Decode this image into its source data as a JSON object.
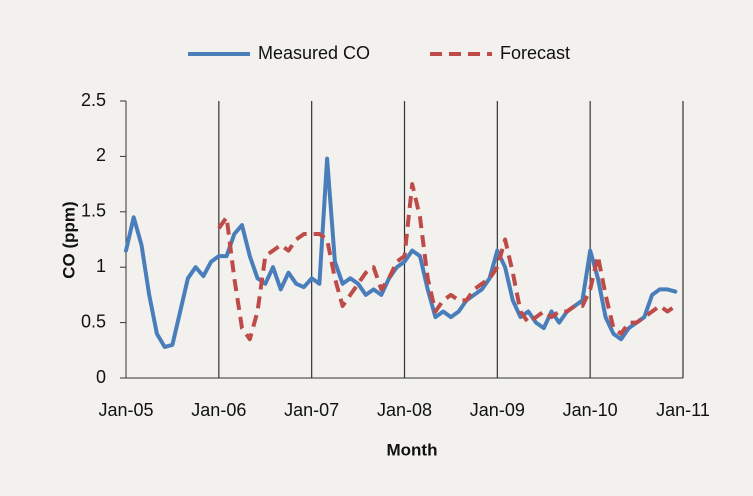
{
  "chart_data": {
    "type": "line",
    "x_label": "Month",
    "y_label": "CO (ppm)",
    "categories": [
      "Jan-05",
      null,
      null,
      null,
      null,
      null,
      null,
      null,
      null,
      null,
      null,
      null,
      "Jan-06",
      null,
      null,
      null,
      null,
      null,
      null,
      null,
      null,
      null,
      null,
      null,
      "Jan-07",
      null,
      null,
      null,
      null,
      null,
      null,
      null,
      null,
      null,
      null,
      null,
      "Jan-08",
      null,
      null,
      null,
      null,
      null,
      null,
      null,
      null,
      null,
      null,
      null,
      "Jan-09",
      null,
      null,
      null,
      null,
      null,
      null,
      null,
      null,
      null,
      null,
      null,
      "Jan-10",
      null,
      null,
      null,
      null,
      null,
      null,
      null,
      null,
      null,
      null,
      null,
      "Jan-11"
    ],
    "series": [
      {
        "name": "Measured CO",
        "color": "#4a7ebb",
        "dash": false,
        "values": [
          1.15,
          1.45,
          1.2,
          0.75,
          0.4,
          0.28,
          0.3,
          0.6,
          0.9,
          1.0,
          0.92,
          1.05,
          1.1,
          1.1,
          1.3,
          1.38,
          1.1,
          0.9,
          0.85,
          1.0,
          0.8,
          0.95,
          0.85,
          0.82,
          0.9,
          0.85,
          1.98,
          1.05,
          0.85,
          0.9,
          0.85,
          0.75,
          0.8,
          0.75,
          0.9,
          1.0,
          1.05,
          1.15,
          1.1,
          0.8,
          0.55,
          0.6,
          0.55,
          0.6,
          0.7,
          0.75,
          0.8,
          0.9,
          1.15,
          1.0,
          0.7,
          0.55,
          0.6,
          0.5,
          0.45,
          0.6,
          0.5,
          0.6,
          0.65,
          0.7,
          1.15,
          0.9,
          0.55,
          0.4,
          0.35,
          0.45,
          0.5,
          0.55,
          0.75,
          0.8,
          0.8,
          0.78,
          null
        ]
      },
      {
        "name": "Forecast",
        "color": "#be4b48",
        "dash": true,
        "values": [
          null,
          null,
          null,
          null,
          null,
          null,
          null,
          null,
          null,
          null,
          null,
          null,
          1.35,
          1.45,
          0.9,
          0.45,
          0.35,
          0.6,
          1.1,
          1.15,
          1.2,
          1.15,
          1.25,
          1.3,
          1.3,
          1.3,
          1.25,
          0.9,
          0.65,
          0.75,
          0.85,
          0.95,
          1.0,
          0.8,
          0.9,
          1.05,
          1.1,
          1.75,
          1.45,
          0.9,
          0.6,
          0.7,
          0.75,
          0.7,
          0.7,
          0.8,
          0.85,
          0.9,
          1.0,
          1.25,
          0.95,
          0.6,
          0.5,
          0.55,
          0.6,
          0.55,
          0.6,
          0.6,
          0.65,
          0.65,
          0.8,
          1.1,
          0.75,
          0.45,
          0.4,
          0.5,
          0.5,
          0.55,
          0.6,
          0.65,
          0.6,
          0.65,
          null
        ]
      }
    ],
    "ylim": [
      0,
      2.5
    ],
    "yticks": [
      0,
      0.5,
      1,
      1.5,
      2,
      2.5
    ],
    "grid": true,
    "legend": "top"
  }
}
